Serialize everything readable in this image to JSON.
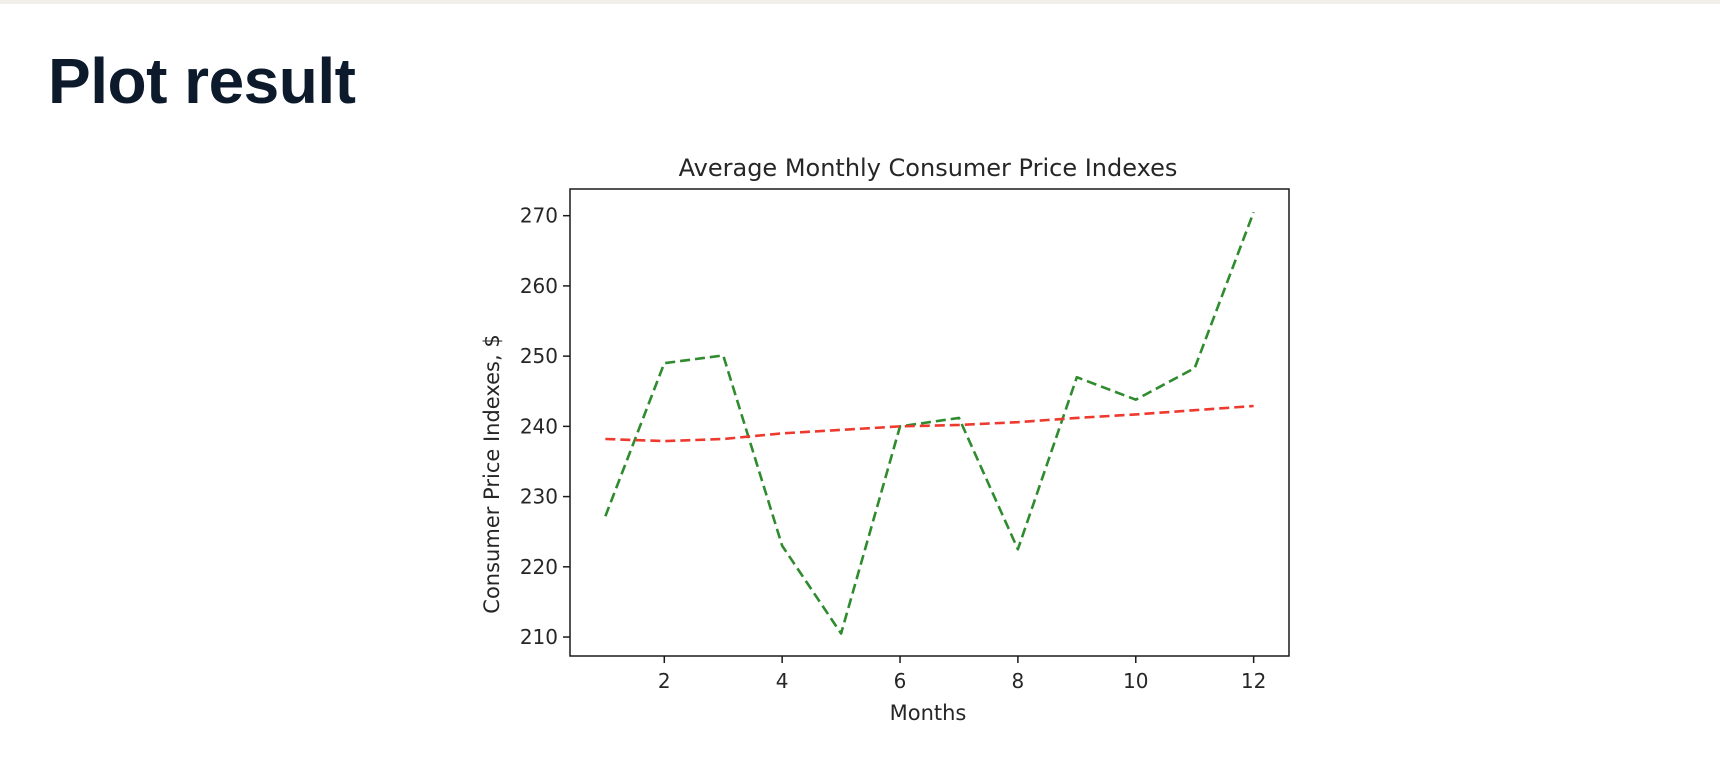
{
  "page": {
    "title": "Plot result"
  },
  "chart_data": {
    "type": "line",
    "title": "Average Monthly Consumer Price Indexes",
    "xlabel": "Months",
    "ylabel": "Consumer Price Indexes, $",
    "x": [
      1,
      2,
      3,
      4,
      5,
      6,
      7,
      8,
      9,
      10,
      11,
      12
    ],
    "xlim": [
      0.4,
      12.6
    ],
    "ylim": [
      207.3,
      273.8
    ],
    "xticks": [
      2,
      4,
      6,
      8,
      10,
      12
    ],
    "yticks": [
      210,
      220,
      230,
      240,
      250,
      260,
      270
    ],
    "grid": false,
    "series": [
      {
        "color": "#2e8b2e",
        "line_style": "dashed",
        "values": [
          227.2,
          249.0,
          250.1,
          223.0,
          210.5,
          240.0,
          241.2,
          222.5,
          247.0,
          243.8,
          248.3,
          270.5
        ]
      },
      {
        "color": "#ee3a2e",
        "line_style": "dashed",
        "values": [
          238.2,
          237.9,
          238.2,
          239.0,
          239.5,
          240.0,
          240.2,
          240.6,
          241.2,
          241.7,
          242.3,
          242.9
        ]
      }
    ]
  }
}
